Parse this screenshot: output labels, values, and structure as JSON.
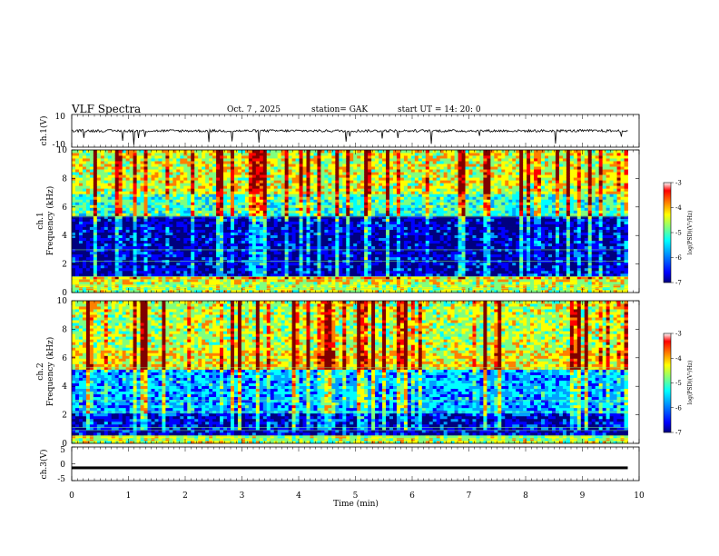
{
  "header": {
    "title": "VLF  Spectra",
    "date": "Oct. 7  , 2025",
    "station": "station= GAK",
    "start": "start  UT  =    14: 20: 0"
  },
  "chart_data": [
    {
      "type": "line",
      "name": "ch1-waveform",
      "ylabel": "ch.1(V)",
      "ylim": [
        -10,
        10
      ],
      "yticks": [
        "10",
        "-10"
      ],
      "baseline": 0,
      "description_values": {
        "mean_level_V": 0,
        "min_spike_V": -10,
        "max_spike_V": 2
      }
    },
    {
      "type": "heatmap",
      "name": "ch1-spectrogram",
      "ylabel": "ch.1\nFrequency  (kHz)",
      "ylim": [
        0,
        10
      ],
      "yticks": [
        "0",
        "2",
        "4",
        "6",
        "8",
        "10"
      ],
      "colorbar": {
        "label": "log(PSD)(V²/Hz)",
        "range": [
          -7,
          -3
        ],
        "ticks": [
          "-3",
          "-4",
          "-5",
          "-6",
          "-7"
        ]
      },
      "bands_khz": [
        {
          "from": 0,
          "to": 0.8,
          "level": -4.8
        },
        {
          "from": 0.8,
          "to": 1.2,
          "level": -4.5
        },
        {
          "from": 1.2,
          "to": 5.3,
          "level": -6.6
        },
        {
          "from": 5.3,
          "to": 7.0,
          "level": -5.3
        },
        {
          "from": 7.0,
          "to": 10,
          "level": -4.7
        }
      ]
    },
    {
      "type": "heatmap",
      "name": "ch2-spectrogram",
      "ylabel": "ch.2\nFrequency  (kHz)",
      "ylim": [
        0,
        10
      ],
      "yticks": [
        "0",
        "2",
        "4",
        "6",
        "8",
        "10"
      ],
      "colorbar": {
        "label": "log(PSD)(V²/Hz)",
        "range": [
          -7,
          -3
        ],
        "ticks": [
          "-3",
          "-4",
          "-5",
          "-6",
          "-7"
        ]
      },
      "bands_khz": [
        {
          "from": 0,
          "to": 0.6,
          "level": -4.8
        },
        {
          "from": 0.6,
          "to": 2.2,
          "level": -6.5
        },
        {
          "from": 2.2,
          "to": 5.2,
          "level": -5.8
        },
        {
          "from": 5.2,
          "to": 6.6,
          "level": -4.5
        },
        {
          "from": 6.6,
          "to": 10,
          "level": -4.8
        }
      ]
    },
    {
      "type": "line",
      "name": "ch3-waveform",
      "ylabel": "ch.3(V)",
      "ylim": [
        -5,
        5
      ],
      "yticks": [
        "5",
        "0",
        "-5"
      ],
      "baseline": -1.2
    }
  ],
  "xaxis": {
    "label": "Time  (min)",
    "range": [
      0,
      10
    ],
    "data_end_min": 9.8,
    "ticks": [
      "0",
      "1",
      "2",
      "3",
      "4",
      "5",
      "6",
      "7",
      "8",
      "9",
      "10"
    ]
  },
  "colors": {
    "colormap": [
      "#00007f",
      "#0000ff",
      "#00a0ff",
      "#00ffff",
      "#7fff7f",
      "#ffff00",
      "#ff8000",
      "#ff0000",
      "#800000"
    ]
  }
}
